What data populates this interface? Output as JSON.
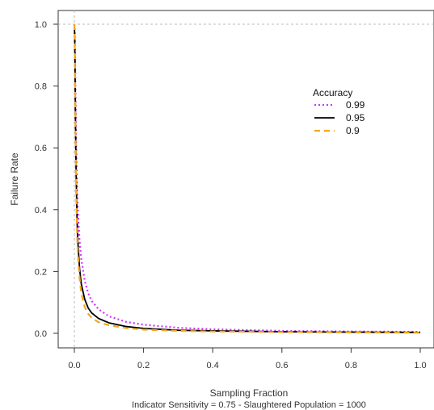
{
  "chart_data": {
    "type": "line",
    "xlabel": "Sampling Fraction",
    "ylabel": "Failure Rate",
    "caption": "Indicator Sensitivity = 0.75  -  Slaughtered Population = 1000",
    "xlim": [
      0,
      1
    ],
    "ylim": [
      0,
      1
    ],
    "x_ticks": [
      0.0,
      0.2,
      0.4,
      0.6,
      0.8,
      1.0
    ],
    "y_ticks": [
      0.0,
      0.2,
      0.4,
      0.6,
      0.8,
      1.0
    ],
    "x_tick_labels": [
      "0.0",
      "0.2",
      "0.4",
      "0.6",
      "0.8",
      "1.0"
    ],
    "y_tick_labels": [
      "0.0",
      "0.2",
      "0.4",
      "0.6",
      "0.8",
      "1.0"
    ],
    "reference_lines": {
      "horizontal": 1.0,
      "vertical": 0.0
    },
    "grid": false,
    "legend": {
      "title": "Accuracy",
      "placement": "top-right"
    },
    "x": [
      0.001,
      0.002,
      0.003,
      0.005,
      0.008,
      0.01,
      0.015,
      0.02,
      0.03,
      0.04,
      0.05,
      0.07,
      0.1,
      0.15,
      0.2,
      0.3,
      0.4,
      0.6,
      0.8,
      1.0
    ],
    "series": [
      {
        "name": "0.99",
        "color": "#cc33ff",
        "dash": "dotted",
        "values": [
          0.985,
          0.91,
          0.8,
          0.62,
          0.46,
          0.4,
          0.3,
          0.24,
          0.17,
          0.13,
          0.105,
          0.078,
          0.055,
          0.037,
          0.028,
          0.018,
          0.013,
          0.008,
          0.006,
          0.005
        ]
      },
      {
        "name": "0.95",
        "color": "#000000",
        "dash": "solid",
        "values": [
          0.96,
          0.86,
          0.72,
          0.52,
          0.36,
          0.3,
          0.21,
          0.16,
          0.11,
          0.082,
          0.066,
          0.048,
          0.034,
          0.022,
          0.016,
          0.01,
          0.008,
          0.005,
          0.004,
          0.003
        ]
      },
      {
        "name": "0.9",
        "color": "#f5a623",
        "dash": "dashed",
        "values": [
          0.94,
          0.83,
          0.68,
          0.47,
          0.32,
          0.26,
          0.18,
          0.13,
          0.085,
          0.063,
          0.05,
          0.036,
          0.026,
          0.017,
          0.012,
          0.008,
          0.006,
          0.004,
          0.003,
          0.002
        ]
      }
    ]
  }
}
